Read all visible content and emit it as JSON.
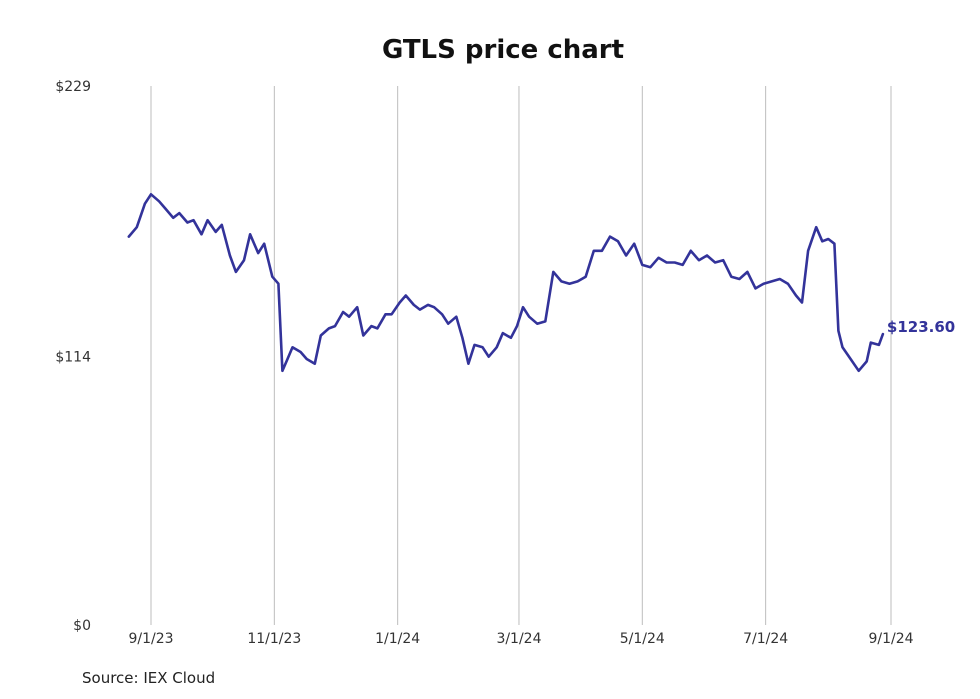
{
  "source_text": "Source: IEX Cloud",
  "chart_data": {
    "type": "line",
    "title": "GTLS price chart",
    "xlabel": "",
    "ylabel": "",
    "ylim": [
      0,
      229
    ],
    "y_ticks": [
      {
        "value": 229,
        "label": "$229"
      },
      {
        "value": 114,
        "label": "$114"
      },
      {
        "value": 0,
        "label": "$0"
      }
    ],
    "x_ticks": [
      {
        "date": "2023-09-01",
        "label": "9/1/23"
      },
      {
        "date": "2023-11-01",
        "label": "11/1/23"
      },
      {
        "date": "2024-01-01",
        "label": "1/1/24"
      },
      {
        "date": "2024-03-01",
        "label": "3/1/24"
      },
      {
        "date": "2024-05-01",
        "label": "5/1/24"
      },
      {
        "date": "2024-07-01",
        "label": "7/1/24"
      },
      {
        "date": "2024-09-01",
        "label": "9/1/24"
      }
    ],
    "grid": "vertical",
    "legend": "none",
    "line_color": "#33339a",
    "last_value_label": "$123.60",
    "series": [
      {
        "points": [
          [
            "2023-08-21",
            165
          ],
          [
            "2023-08-25",
            169
          ],
          [
            "2023-08-29",
            179
          ],
          [
            "2023-09-01",
            183
          ],
          [
            "2023-09-05",
            180
          ],
          [
            "2023-09-08",
            177
          ],
          [
            "2023-09-12",
            173
          ],
          [
            "2023-09-15",
            175
          ],
          [
            "2023-09-19",
            171
          ],
          [
            "2023-09-22",
            172
          ],
          [
            "2023-09-26",
            166
          ],
          [
            "2023-09-29",
            172
          ],
          [
            "2023-10-03",
            167
          ],
          [
            "2023-10-06",
            170
          ],
          [
            "2023-10-10",
            157
          ],
          [
            "2023-10-13",
            150
          ],
          [
            "2023-10-17",
            155
          ],
          [
            "2023-10-20",
            166
          ],
          [
            "2023-10-24",
            158
          ],
          [
            "2023-10-27",
            162
          ],
          [
            "2023-10-31",
            148
          ],
          [
            "2023-11-03",
            145
          ],
          [
            "2023-11-05",
            108
          ],
          [
            "2023-11-07",
            112
          ],
          [
            "2023-11-10",
            118
          ],
          [
            "2023-11-14",
            116
          ],
          [
            "2023-11-17",
            113
          ],
          [
            "2023-11-21",
            111
          ],
          [
            "2023-11-24",
            123
          ],
          [
            "2023-11-28",
            126
          ],
          [
            "2023-12-01",
            127
          ],
          [
            "2023-12-05",
            133
          ],
          [
            "2023-12-08",
            131
          ],
          [
            "2023-12-12",
            135
          ],
          [
            "2023-12-15",
            123
          ],
          [
            "2023-12-19",
            127
          ],
          [
            "2023-12-22",
            126
          ],
          [
            "2023-12-26",
            132
          ],
          [
            "2023-12-29",
            132
          ],
          [
            "2024-01-02",
            137
          ],
          [
            "2024-01-05",
            140
          ],
          [
            "2024-01-09",
            136
          ],
          [
            "2024-01-12",
            134
          ],
          [
            "2024-01-16",
            136
          ],
          [
            "2024-01-19",
            135
          ],
          [
            "2024-01-23",
            132
          ],
          [
            "2024-01-26",
            128
          ],
          [
            "2024-01-30",
            131
          ],
          [
            "2024-02-02",
            122
          ],
          [
            "2024-02-05",
            111
          ],
          [
            "2024-02-08",
            119
          ],
          [
            "2024-02-12",
            118
          ],
          [
            "2024-02-15",
            114
          ],
          [
            "2024-02-19",
            118
          ],
          [
            "2024-02-22",
            124
          ],
          [
            "2024-02-26",
            122
          ],
          [
            "2024-02-29",
            127
          ],
          [
            "2024-03-03",
            135
          ],
          [
            "2024-03-06",
            131
          ],
          [
            "2024-03-10",
            128
          ],
          [
            "2024-03-14",
            129
          ],
          [
            "2024-03-18",
            150
          ],
          [
            "2024-03-22",
            146
          ],
          [
            "2024-03-26",
            145
          ],
          [
            "2024-03-30",
            146
          ],
          [
            "2024-04-03",
            148
          ],
          [
            "2024-04-07",
            159
          ],
          [
            "2024-04-11",
            159
          ],
          [
            "2024-04-15",
            165
          ],
          [
            "2024-04-19",
            163
          ],
          [
            "2024-04-23",
            157
          ],
          [
            "2024-04-27",
            162
          ],
          [
            "2024-05-01",
            153
          ],
          [
            "2024-05-05",
            152
          ],
          [
            "2024-05-09",
            156
          ],
          [
            "2024-05-13",
            154
          ],
          [
            "2024-05-17",
            154
          ],
          [
            "2024-05-21",
            153
          ],
          [
            "2024-05-25",
            159
          ],
          [
            "2024-05-29",
            155
          ],
          [
            "2024-06-02",
            157
          ],
          [
            "2024-06-06",
            154
          ],
          [
            "2024-06-10",
            155
          ],
          [
            "2024-06-14",
            148
          ],
          [
            "2024-06-18",
            147
          ],
          [
            "2024-06-22",
            150
          ],
          [
            "2024-06-26",
            143
          ],
          [
            "2024-06-30",
            145
          ],
          [
            "2024-07-04",
            146
          ],
          [
            "2024-07-08",
            147
          ],
          [
            "2024-07-12",
            145
          ],
          [
            "2024-07-16",
            140
          ],
          [
            "2024-07-19",
            137
          ],
          [
            "2024-07-22",
            159
          ],
          [
            "2024-07-26",
            169
          ],
          [
            "2024-07-29",
            163
          ],
          [
            "2024-08-01",
            164
          ],
          [
            "2024-08-04",
            162
          ],
          [
            "2024-08-06",
            125
          ],
          [
            "2024-08-08",
            118
          ],
          [
            "2024-08-12",
            113
          ],
          [
            "2024-08-16",
            108
          ],
          [
            "2024-08-20",
            112
          ],
          [
            "2024-08-22",
            120
          ],
          [
            "2024-08-26",
            119
          ],
          [
            "2024-08-28",
            123.6
          ]
        ]
      }
    ]
  }
}
